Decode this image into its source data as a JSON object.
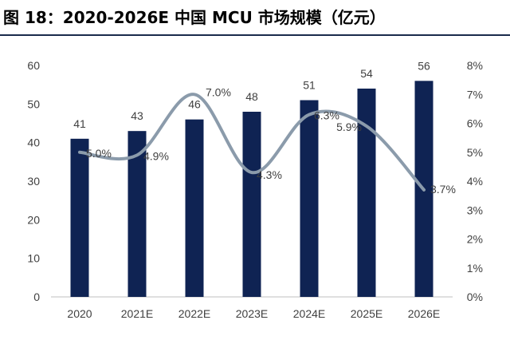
{
  "title": "图 18：2020-2026E 中国 MCU 市场规模（亿元）",
  "colors": {
    "bar": "#0f2353",
    "line": "#8b9bab",
    "title_rule": "#1a2b4c"
  },
  "chart_data": {
    "type": "bar",
    "categories": [
      "2020",
      "2021E",
      "2022E",
      "2023E",
      "2024E",
      "2025E",
      "2026E"
    ],
    "series": [
      {
        "type": "bar",
        "axis": "left",
        "values": [
          41,
          43,
          46,
          48,
          51,
          54,
          56
        ],
        "value_labels": [
          "41",
          "43",
          "46",
          "48",
          "51",
          "54",
          "56"
        ]
      },
      {
        "type": "line",
        "axis": "right",
        "smooth": true,
        "values": [
          5.0,
          4.9,
          7.0,
          4.3,
          6.3,
          5.9,
          3.7
        ],
        "value_labels": [
          "5.0%",
          "4.9%",
          "7.0%",
          "4.3%",
          "6.3%",
          "5.9%",
          "3.7%"
        ]
      }
    ],
    "y_left": {
      "min": 0,
      "max": 60,
      "ticks": [
        "0",
        "10",
        "20",
        "30",
        "40",
        "50",
        "60"
      ]
    },
    "y_right": {
      "min": 0,
      "max": 8,
      "ticks": [
        "0%",
        "1%",
        "2%",
        "3%",
        "4%",
        "5%",
        "6%",
        "7%",
        "8%"
      ]
    },
    "grid": false,
    "legend": "none"
  }
}
